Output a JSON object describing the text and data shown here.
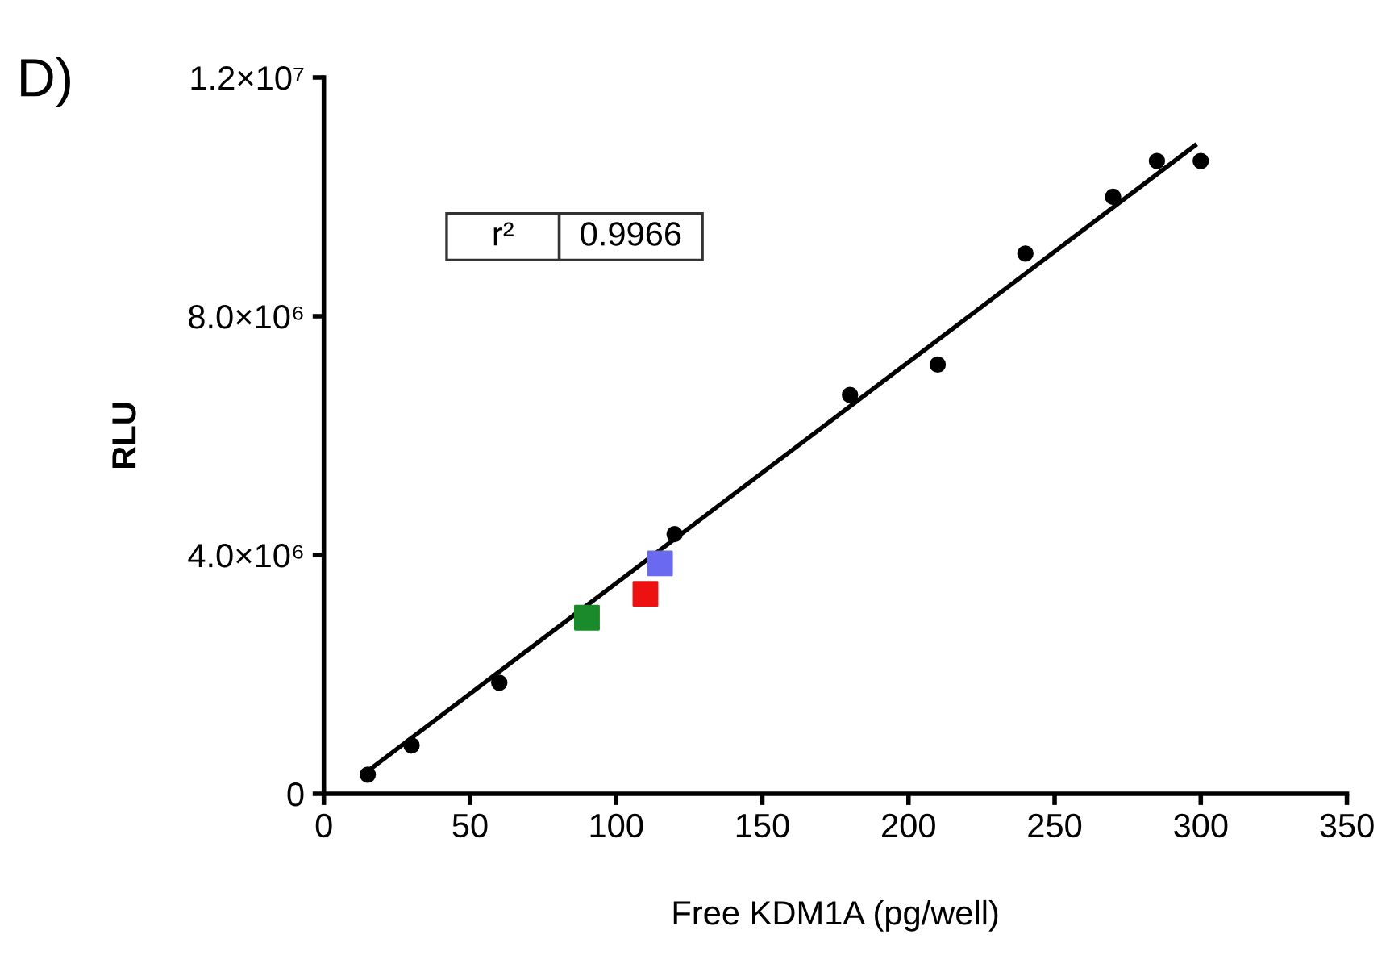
{
  "chart_data": {
    "type": "scatter",
    "title": "D)",
    "xlabel": "Free KDM1A (pg/well)",
    "ylabel": "RLU",
    "annotations": [
      "r²",
      "0.9966"
    ],
    "series": [
      {
        "color": "#000000",
        "marker": "circle",
        "x": [
          15,
          30,
          60,
          120,
          180,
          210,
          240,
          270,
          285,
          300
        ],
        "values": [
          320000,
          810000,
          1860000,
          4350000,
          6680000,
          7190000,
          9050000,
          10000000,
          10600000,
          10600000
        ]
      },
      {
        "color": "#1a8a2a",
        "marker": "square",
        "x": [
          90
        ],
        "values": [
          2950000
        ]
      },
      {
        "color": "#ee1111",
        "marker": "square",
        "x": [
          110
        ],
        "values": [
          3350000
        ]
      },
      {
        "color": "#6a6af0",
        "marker": "square",
        "x": [
          115
        ],
        "values": [
          3860000
        ]
      },
      {
        "type": "line",
        "color": "#000000",
        "marker": "none",
        "line_style": "solid",
        "x": [
          15,
          298
        ],
        "values": [
          380000,
          10860000
        ]
      }
    ],
    "xlim": [
      0,
      350
    ],
    "xticks": [
      0,
      50,
      100,
      150,
      200,
      250,
      300,
      350
    ],
    "ylim": [
      0,
      12000000
    ],
    "yticks": [
      0,
      {
        "value": 4000000,
        "label": "4.0×10⁶"
      },
      {
        "value": 8000000,
        "label": "8.0×10⁶"
      },
      {
        "value": 12000000,
        "label": "1.2×10⁷"
      }
    ],
    "grid": false,
    "legend": false
  }
}
